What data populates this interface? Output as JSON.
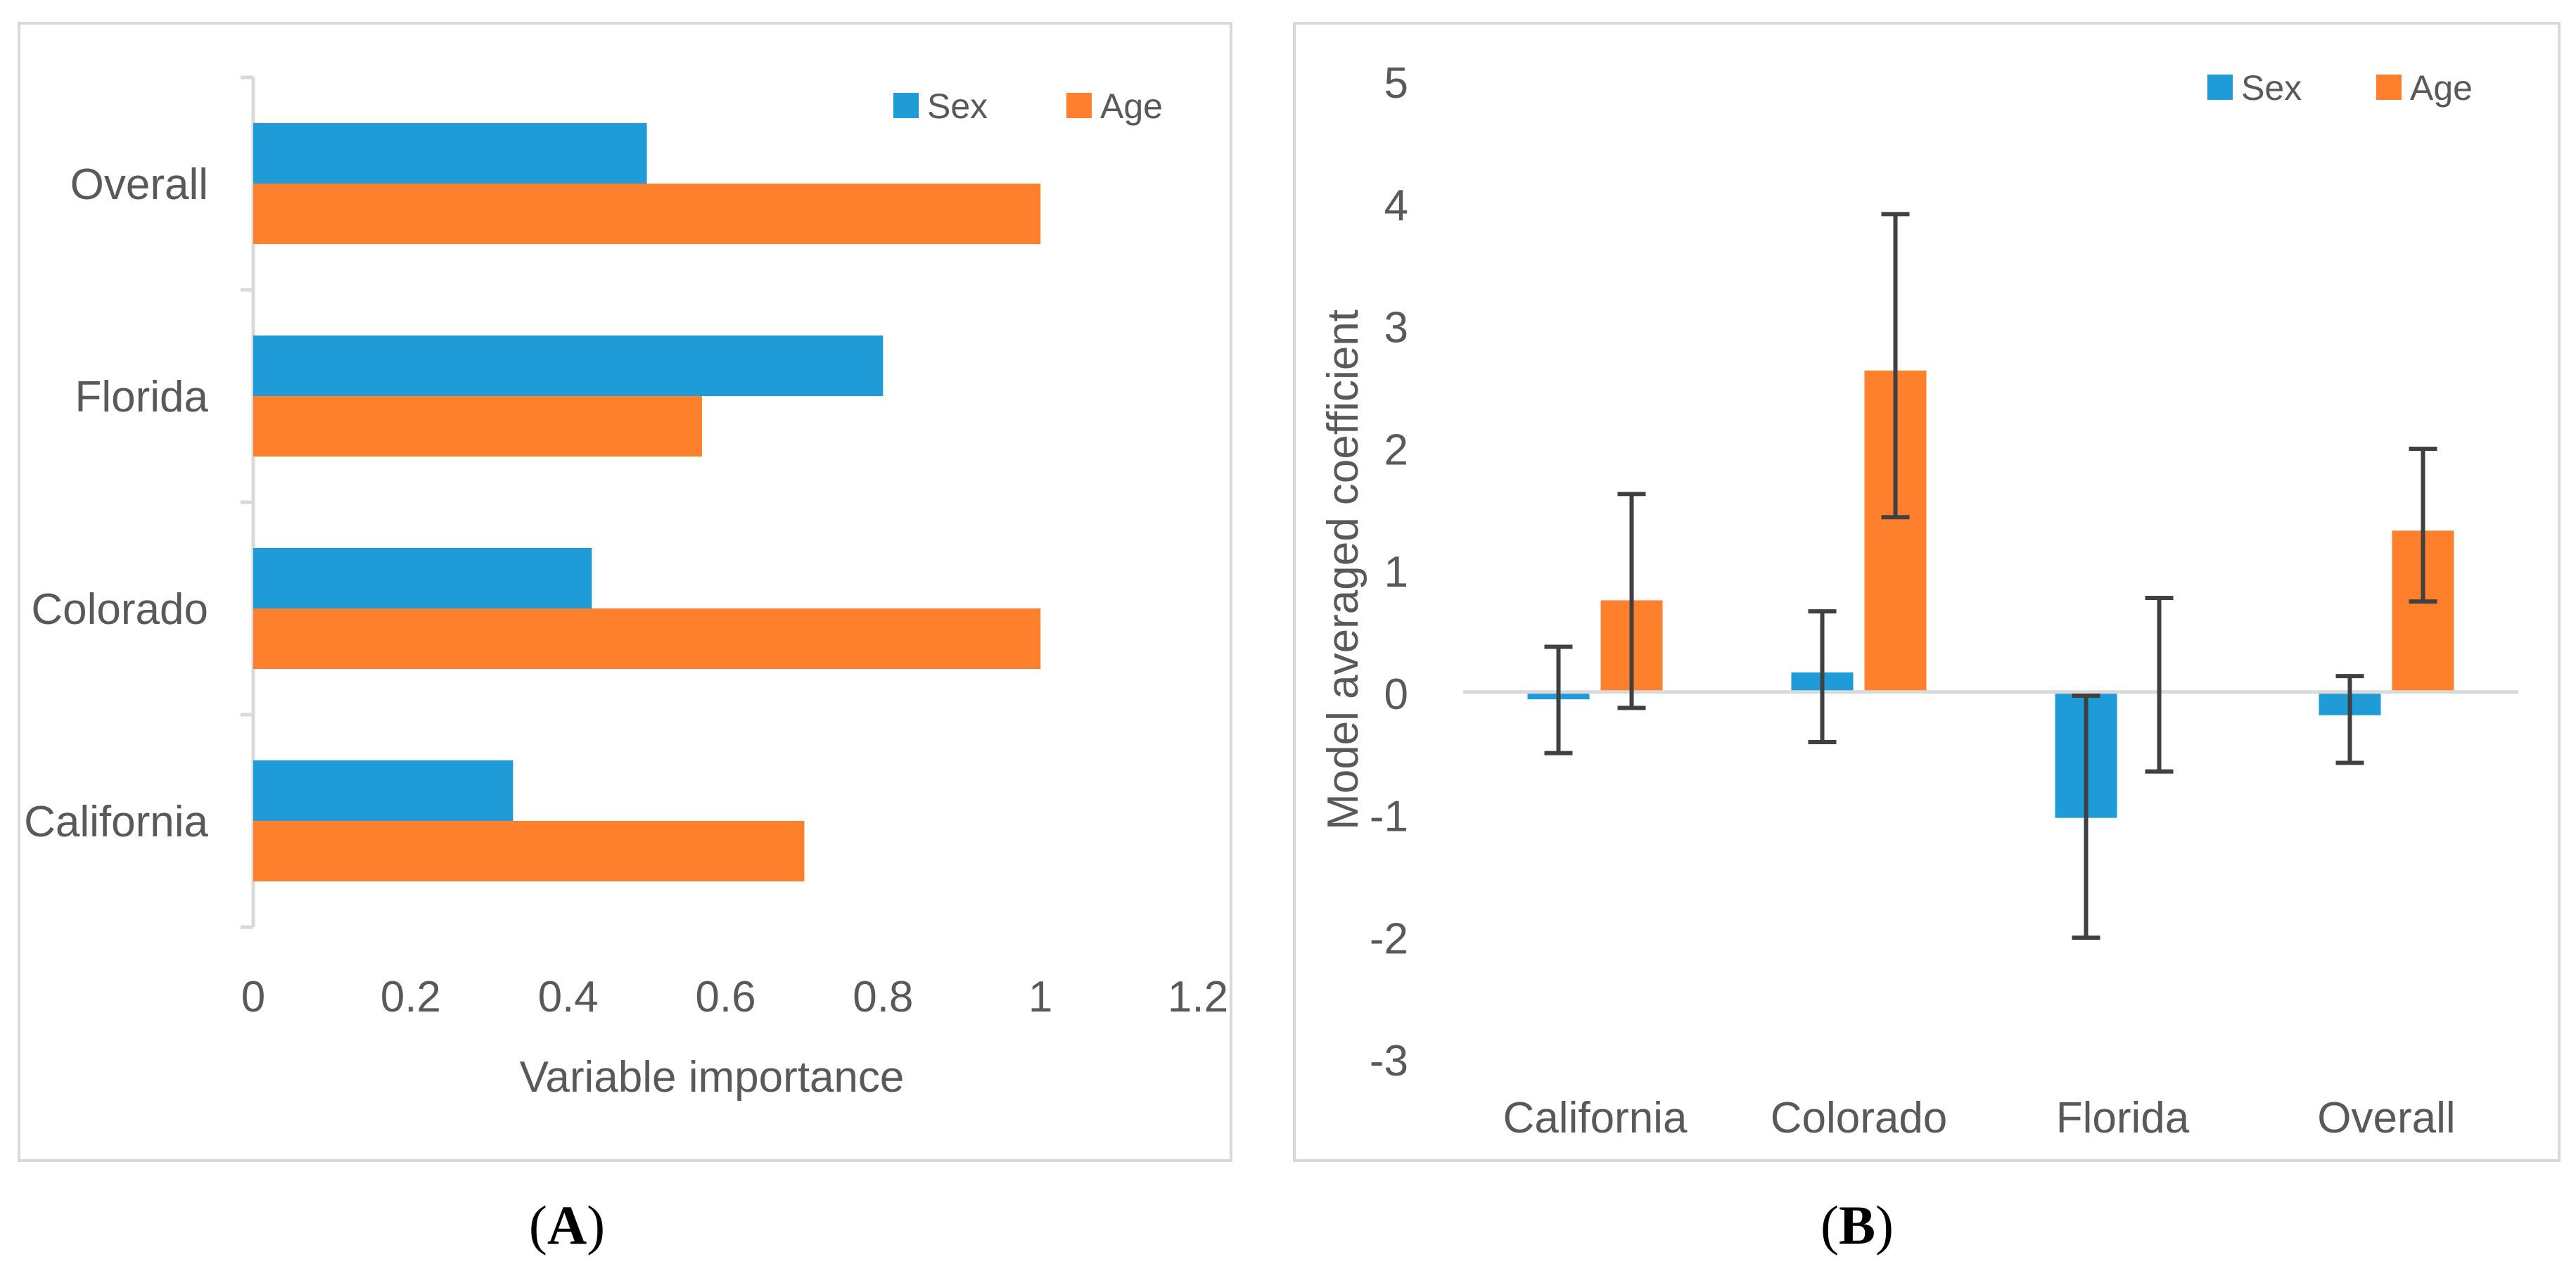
{
  "colors": {
    "sex": "#1f9bd7",
    "age": "#fe7f2c",
    "axis": "#d9d9d9",
    "text": "#595959",
    "error_bar": "#404040"
  },
  "panel_a": {
    "caption_open": "(",
    "caption_letter": "A",
    "caption_close": ")"
  },
  "panel_b": {
    "caption_open": "(",
    "caption_letter": "B",
    "caption_close": ")"
  },
  "chart_data": [
    {
      "type": "bar",
      "orientation": "horizontal",
      "categories": [
        "California",
        "Colorado",
        "Florida",
        "Overall"
      ],
      "series": [
        {
          "name": "Sex",
          "values": [
            0.33,
            0.43,
            0.8,
            0.5
          ]
        },
        {
          "name": "Age",
          "values": [
            0.7,
            1.0,
            0.57,
            1.0
          ]
        }
      ],
      "xlabel": "Variable importance",
      "ylabel": "",
      "xlim": [
        0,
        1.2
      ],
      "xticks": [
        "0",
        "0.2",
        "0.4",
        "0.6",
        "0.8",
        "1",
        "1.2"
      ],
      "grid": false,
      "legend": "top-right"
    },
    {
      "type": "bar",
      "orientation": "vertical",
      "categories": [
        "California",
        "Colorado",
        "Florida",
        "Overall"
      ],
      "series": [
        {
          "name": "Sex",
          "values": [
            -0.06,
            0.16,
            -1.03,
            -0.19
          ],
          "error_low": [
            -0.5,
            -0.41,
            -2.01,
            -0.58
          ],
          "error_high": [
            0.37,
            0.66,
            -0.03,
            0.13
          ]
        },
        {
          "name": "Age",
          "values": [
            0.75,
            2.63,
            0.01,
            1.32
          ],
          "error_low": [
            -0.13,
            1.43,
            -0.65,
            0.74
          ],
          "error_high": [
            1.62,
            3.91,
            0.77,
            1.99
          ]
        }
      ],
      "xlabel": "",
      "ylabel": "Model averaged coefficient",
      "ylim": [
        -3,
        5
      ],
      "yticks": [
        "5",
        "4",
        "3",
        "2",
        "1",
        "0",
        "-1",
        "-2",
        "-3"
      ],
      "grid": false,
      "legend": "top-right"
    }
  ]
}
